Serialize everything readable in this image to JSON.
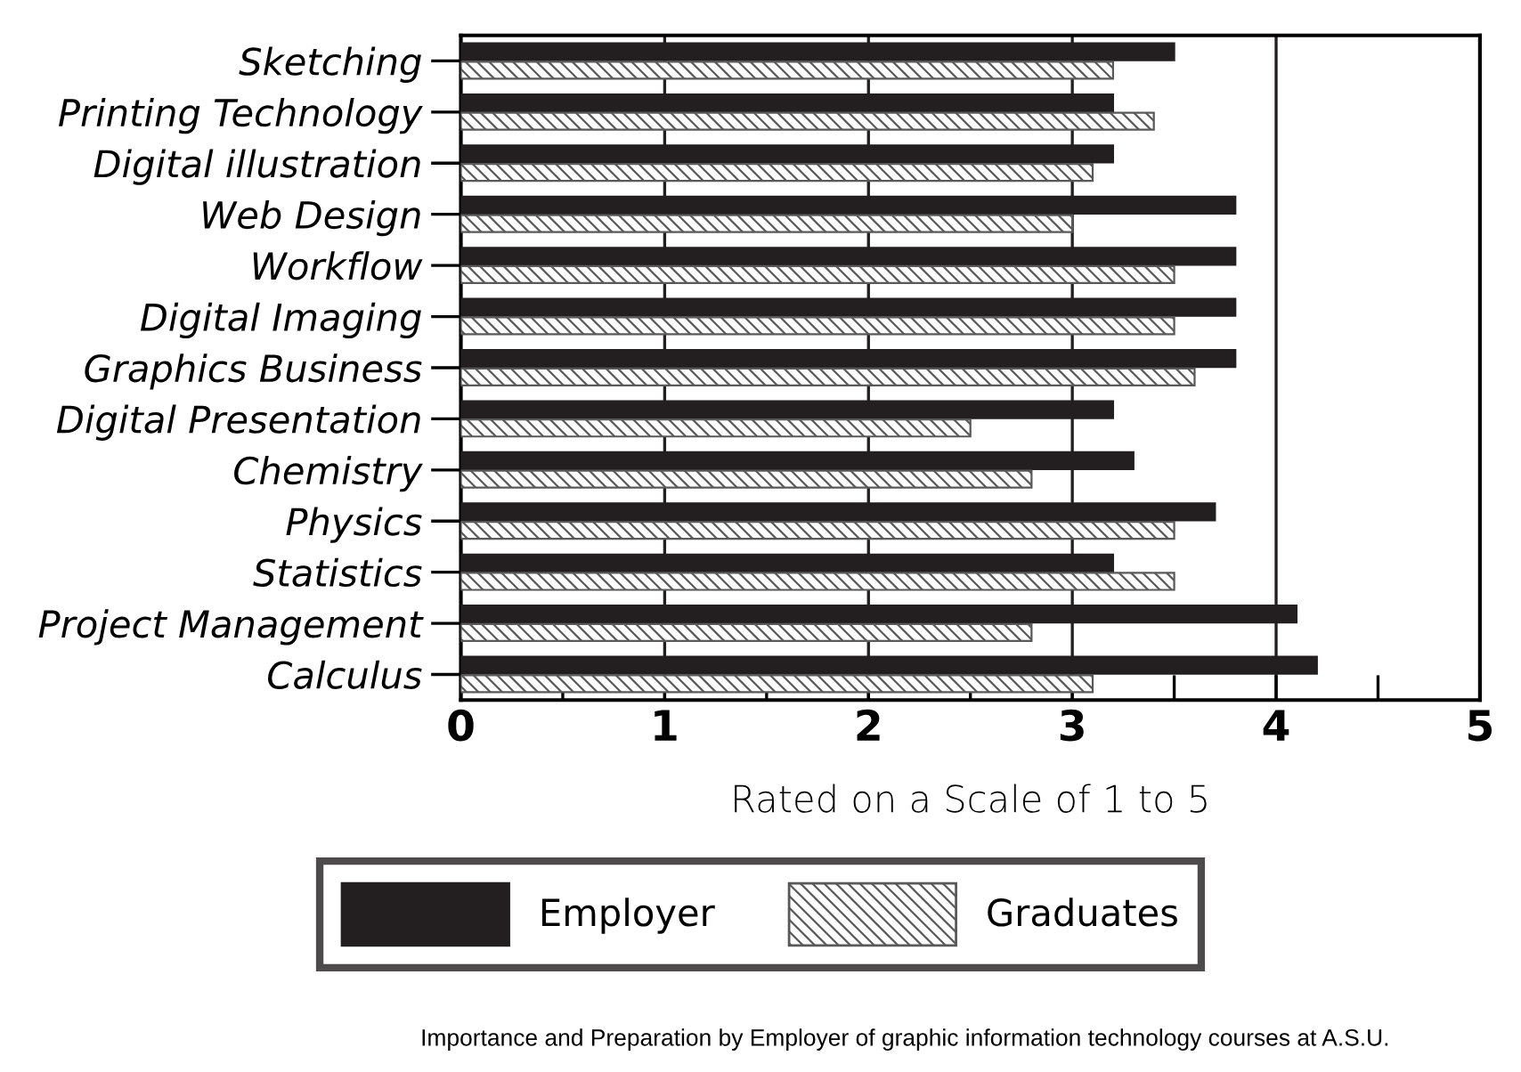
{
  "chart_data": {
    "type": "bar",
    "orientation": "horizontal",
    "categories": [
      "Sketching",
      "Printing Technology",
      "Digital illustration",
      "Web Design",
      "Workflow",
      "Digital Imaging",
      "Graphics Business",
      "Digital Presentation",
      "Chemistry",
      "Physics",
      "Statistics",
      "Project Management",
      "Calculus"
    ],
    "series": [
      {
        "name": "Employer",
        "color": "#231f20",
        "values": [
          3.5,
          3.2,
          3.2,
          3.8,
          3.8,
          3.8,
          3.8,
          3.2,
          3.3,
          3.7,
          3.2,
          4.1,
          4.2
        ]
      },
      {
        "name": "Graduates",
        "color": "#595959",
        "values": [
          3.2,
          3.4,
          3.1,
          3.0,
          3.5,
          3.5,
          3.6,
          2.5,
          2.8,
          3.5,
          3.5,
          2.8,
          3.1
        ]
      }
    ],
    "xlabel": "Rated on a Scale of 1 to 5",
    "xlim": [
      0,
      5
    ],
    "xticks": [
      0,
      {
        "value": 0.5,
        "label": null
      },
      1,
      {
        "value": 1.5,
        "label": null
      },
      2,
      {
        "value": 2.5,
        "label": null
      },
      3,
      {
        "value": 3.5,
        "label": null
      },
      4,
      {
        "value": 4.5,
        "label": null
      },
      5
    ],
    "grid": "x",
    "legend": "bottom",
    "annotations": [
      "Importance and Preparation by Employer of graphic information technology courses at A.S.U."
    ]
  }
}
